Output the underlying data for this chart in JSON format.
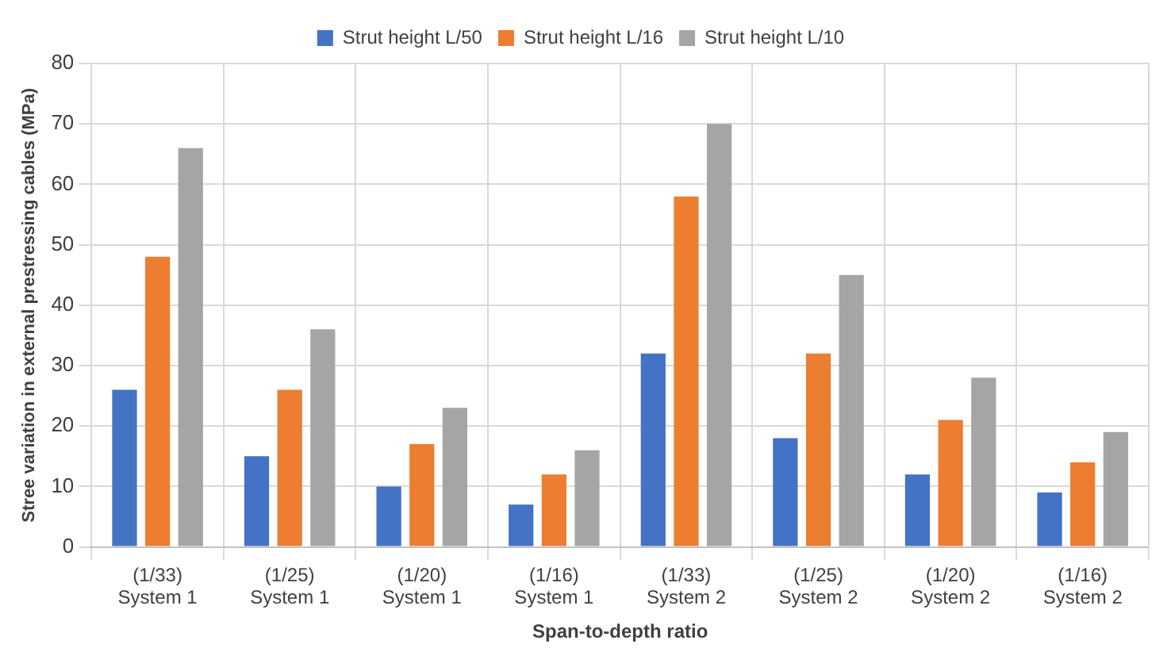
{
  "chart_data": {
    "type": "bar",
    "xlabel": "Span-to-depth ratio",
    "ylabel": "Stree variation in external prestressing cables (MPa)",
    "categories": [
      "(1/33)\nSystem 1",
      "(1/25)\nSystem 1",
      "(1/20)\nSystem 1",
      "(1/16)\nSystem 1",
      "(1/33)\nSystem 2",
      "(1/25)\nSystem 2",
      "(1/20)\nSystem 2",
      "(1/16)\nSystem 2"
    ],
    "series": [
      {
        "name": "Strut height L/50",
        "color": "#4472c4",
        "values": [
          26,
          15,
          10,
          7,
          32,
          18,
          12,
          9
        ]
      },
      {
        "name": "Strut height L/16",
        "color": "#ed7d31",
        "values": [
          48,
          26,
          17,
          12,
          58,
          32,
          21,
          14
        ]
      },
      {
        "name": "Strut height L/10",
        "color": "#a5a5a5",
        "values": [
          66,
          36,
          23,
          16,
          70,
          45,
          28,
          19
        ]
      }
    ],
    "ylim": [
      0,
      80
    ],
    "yticks": [
      0,
      10,
      20,
      30,
      40,
      50,
      60,
      70,
      80
    ],
    "grid": true,
    "legend": "top"
  }
}
